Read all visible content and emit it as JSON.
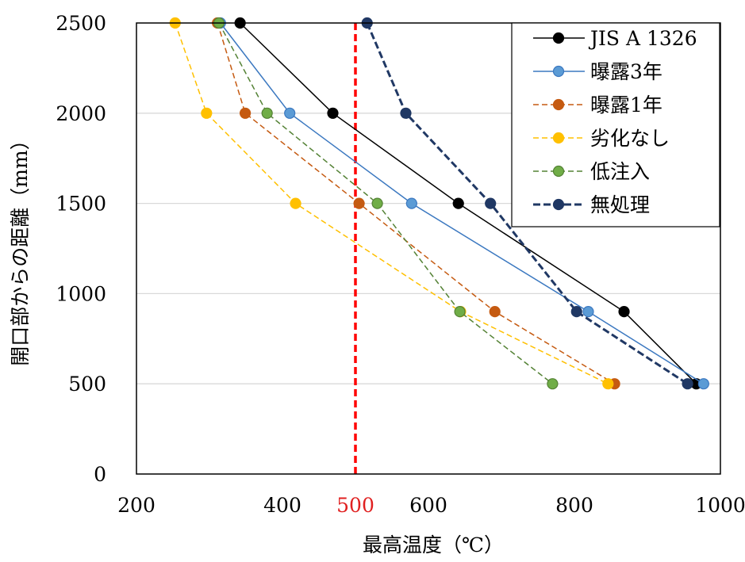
{
  "chart_data": {
    "type": "line",
    "title": "",
    "xlabel": "最高温度（℃）",
    "ylabel": "開口部からの距離（mm）",
    "xlim": [
      200,
      1000
    ],
    "ylim": [
      0,
      2500
    ],
    "xticks": [
      {
        "value": 200,
        "label": "200"
      },
      {
        "value": 400,
        "label": "400"
      },
      {
        "value": 500,
        "label": "500",
        "color": "#e02020"
      },
      {
        "value": 600,
        "label": "600"
      },
      {
        "value": 800,
        "label": "800"
      },
      {
        "value": 1000,
        "label": "1000"
      }
    ],
    "yticks": [
      {
        "value": 0,
        "label": "0"
      },
      {
        "value": 500,
        "label": "500"
      },
      {
        "value": 1000,
        "label": "1000"
      },
      {
        "value": 1500,
        "label": "1500"
      },
      {
        "value": 2000,
        "label": "2000"
      },
      {
        "value": 2500,
        "label": "2500"
      }
    ],
    "grid": "horizontal",
    "legend_position": "top-right",
    "reference_line": {
      "x": 500,
      "color": "#ff0000",
      "style": "dashed"
    },
    "series": [
      {
        "name": "JIS A 1326",
        "color": "#000000",
        "marker_fill": "#000000",
        "dash": "solid",
        "width": 1.5,
        "points": [
          [
            342,
            2500
          ],
          [
            469,
            2000
          ],
          [
            641,
            1500
          ],
          [
            868,
            900
          ],
          [
            967,
            500
          ]
        ]
      },
      {
        "name": "曝露3年",
        "color": "#3b78c0",
        "marker_fill": "#5b9bd5",
        "dash": "solid",
        "width": 1.5,
        "points": [
          [
            315,
            2500
          ],
          [
            410,
            2000
          ],
          [
            577,
            1500
          ],
          [
            819,
            900
          ],
          [
            977,
            500
          ]
        ]
      },
      {
        "name": "曝露1年",
        "color": "#c55a11",
        "marker_fill": "#c55a11",
        "dash": "dashed",
        "width": 1.5,
        "points": [
          [
            311,
            2500
          ],
          [
            349,
            2000
          ],
          [
            505,
            1500
          ],
          [
            691,
            900
          ],
          [
            855,
            500
          ]
        ]
      },
      {
        "name": "劣化なし",
        "color": "#ffc000",
        "marker_fill": "#ffc000",
        "dash": "dashed",
        "width": 1.5,
        "points": [
          [
            253,
            2500
          ],
          [
            296,
            2000
          ],
          [
            418,
            1500
          ],
          [
            644,
            900
          ],
          [
            846,
            500
          ]
        ]
      },
      {
        "name": "低注入",
        "color": "#548235",
        "marker_fill": "#70ad47",
        "dash": "dashed",
        "width": 1.5,
        "points": [
          [
            313,
            2500
          ],
          [
            379,
            2000
          ],
          [
            530,
            1500
          ],
          [
            643,
            900
          ],
          [
            770,
            500
          ]
        ]
      },
      {
        "name": "無処理",
        "color": "#203864",
        "marker_fill": "#203864",
        "dash": "dashed-bold",
        "width": 3,
        "points": [
          [
            516,
            2500
          ],
          [
            569,
            2000
          ],
          [
            685,
            1500
          ],
          [
            803,
            900
          ],
          [
            955,
            500
          ]
        ]
      }
    ]
  }
}
